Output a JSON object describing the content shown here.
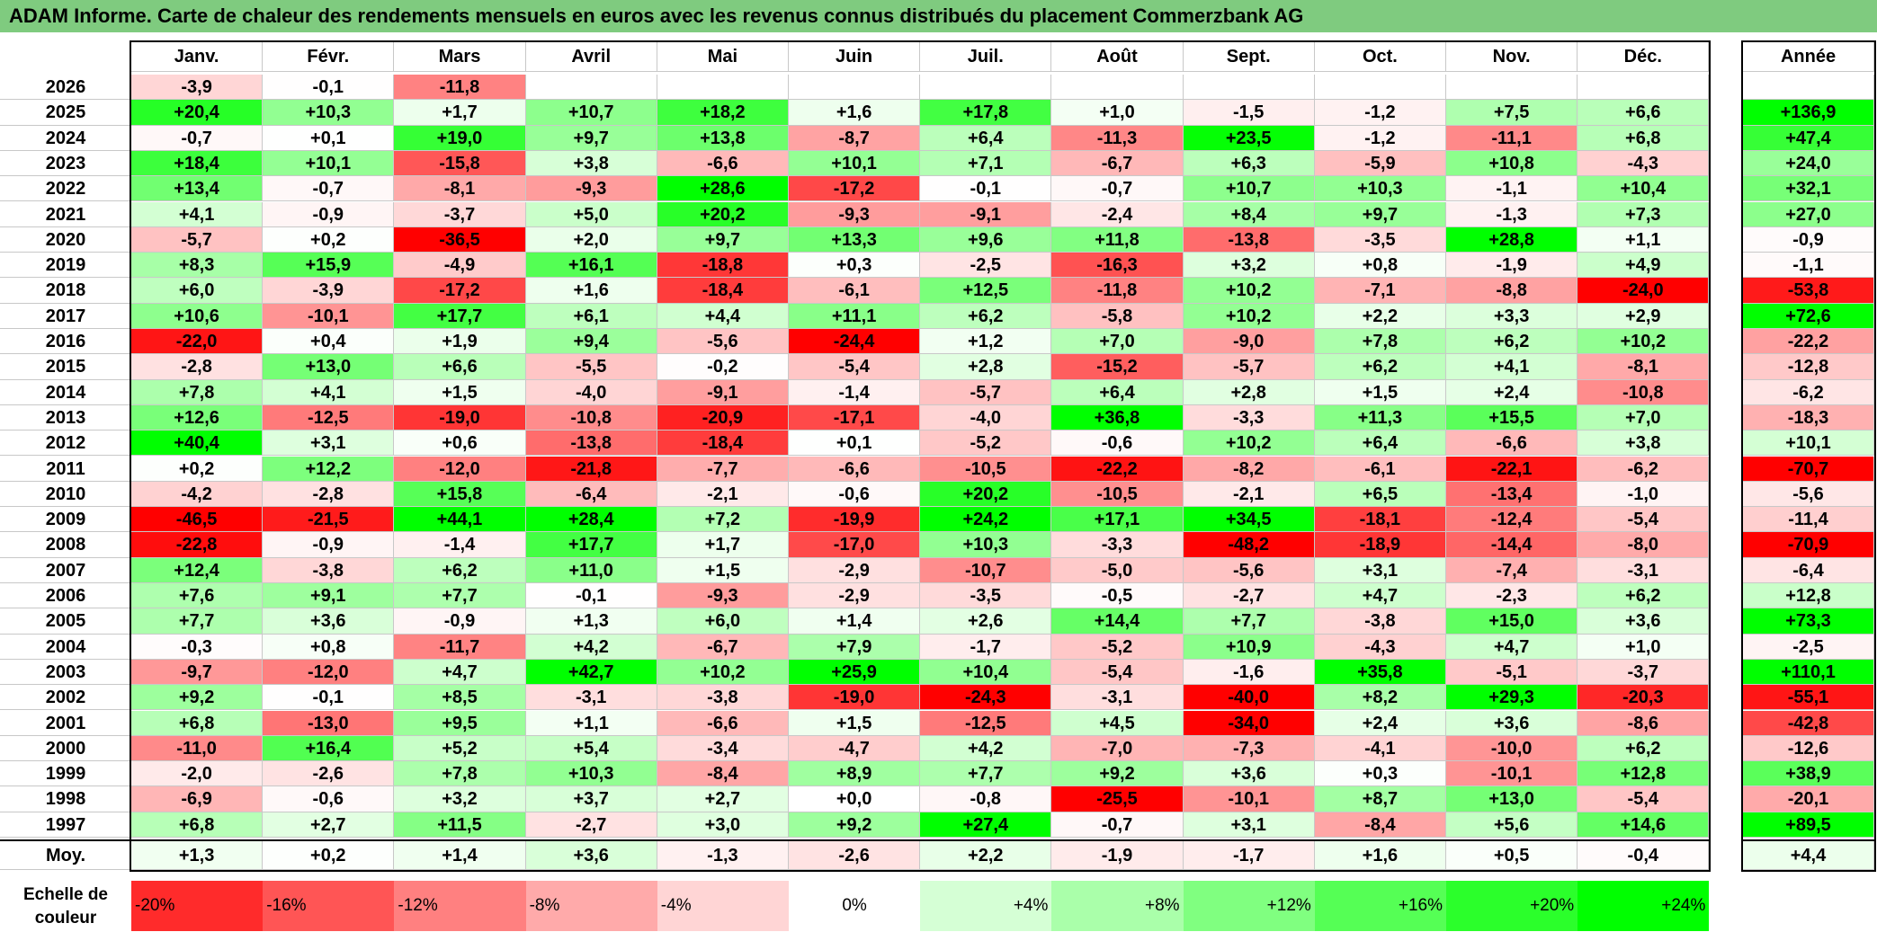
{
  "title": "ADAM Informe. Carte de chaleur des rendements mensuels en euros avec les revenus connus distribués du placement Commerzbank AG",
  "months": [
    "Janv.",
    "Févr.",
    "Mars",
    "Avril",
    "Mai",
    "Juin",
    "Juil.",
    "Août",
    "Sept.",
    "Oct.",
    "Nov.",
    "Déc."
  ],
  "year_header": "Année",
  "avg_label": "Moy.",
  "legend_title_line1": "Echelle de",
  "legend_title_line2": "couleur",
  "colors": {
    "negative": "#ff0000",
    "neutral": "#ffffff",
    "positive": "#00ff00",
    "title_bar": "#7fcb7f"
  },
  "chart_data": {
    "type": "heatmap",
    "title": "ADAM Informe. Carte de chaleur des rendements mensuels en euros avec les revenus connus distribués du placement Commerzbank AG",
    "columns": [
      "Janv.",
      "Févr.",
      "Mars",
      "Avril",
      "Mai",
      "Juin",
      "Juil.",
      "Août",
      "Sept.",
      "Oct.",
      "Nov.",
      "Déc."
    ],
    "rows": [
      {
        "year": "2026",
        "values": [
          -3.9,
          -0.1,
          -11.8,
          null,
          null,
          null,
          null,
          null,
          null,
          null,
          null,
          null
        ],
        "annual": null
      },
      {
        "year": "2025",
        "values": [
          20.4,
          10.3,
          1.7,
          10.7,
          18.2,
          1.6,
          17.8,
          1.0,
          -1.5,
          -1.2,
          7.5,
          6.6
        ],
        "annual": 136.9
      },
      {
        "year": "2024",
        "values": [
          -0.7,
          0.1,
          19.0,
          9.7,
          13.8,
          -8.7,
          6.4,
          -11.3,
          23.5,
          -1.2,
          -11.1,
          6.8
        ],
        "annual": 47.4
      },
      {
        "year": "2023",
        "values": [
          18.4,
          10.1,
          -15.8,
          3.8,
          -6.6,
          10.1,
          7.1,
          -6.7,
          6.3,
          -5.9,
          10.8,
          -4.3
        ],
        "annual": 24.0
      },
      {
        "year": "2022",
        "values": [
          13.4,
          -0.7,
          -8.1,
          -9.3,
          28.6,
          -17.2,
          -0.1,
          -0.7,
          10.7,
          10.3,
          -1.1,
          10.4
        ],
        "annual": 32.1
      },
      {
        "year": "2021",
        "values": [
          4.1,
          -0.9,
          -3.7,
          5.0,
          20.2,
          -9.3,
          -9.1,
          -2.4,
          8.4,
          9.7,
          -1.3,
          7.3
        ],
        "annual": 27.0
      },
      {
        "year": "2020",
        "values": [
          -5.7,
          0.2,
          -36.5,
          2.0,
          9.7,
          13.3,
          9.6,
          11.8,
          -13.8,
          -3.5,
          28.8,
          1.1
        ],
        "annual": -0.9
      },
      {
        "year": "2019",
        "values": [
          8.3,
          15.9,
          -4.9,
          16.1,
          -18.8,
          0.3,
          -2.5,
          -16.3,
          3.2,
          0.8,
          -1.9,
          4.9
        ],
        "annual": -1.1
      },
      {
        "year": "2018",
        "values": [
          6.0,
          -3.9,
          -17.2,
          1.6,
          -18.4,
          -6.1,
          12.5,
          -11.8,
          10.2,
          -7.1,
          -8.8,
          -24.0
        ],
        "annual": -53.8
      },
      {
        "year": "2017",
        "values": [
          10.6,
          -10.1,
          17.7,
          6.1,
          4.4,
          11.1,
          6.2,
          -5.8,
          10.2,
          2.2,
          3.3,
          2.9
        ],
        "annual": 72.6
      },
      {
        "year": "2016",
        "values": [
          -22.0,
          0.4,
          1.9,
          9.4,
          -5.6,
          -24.4,
          1.2,
          7.0,
          -9.0,
          7.8,
          6.2,
          10.2
        ],
        "annual": -22.2
      },
      {
        "year": "2015",
        "values": [
          -2.8,
          13.0,
          6.6,
          -5.5,
          -0.2,
          -5.4,
          2.8,
          -15.2,
          -5.7,
          6.2,
          4.1,
          -8.1
        ],
        "annual": -12.8
      },
      {
        "year": "2014",
        "values": [
          7.8,
          4.1,
          1.5,
          -4.0,
          -9.1,
          -1.4,
          -5.7,
          6.4,
          2.8,
          1.5,
          2.4,
          -10.8
        ],
        "annual": -6.2
      },
      {
        "year": "2013",
        "values": [
          12.6,
          -12.5,
          -19.0,
          -10.8,
          -20.9,
          -17.1,
          -4.0,
          36.8,
          -3.3,
          11.3,
          15.5,
          7.0
        ],
        "annual": -18.3
      },
      {
        "year": "2012",
        "values": [
          40.4,
          3.1,
          0.6,
          -13.8,
          -18.4,
          0.1,
          -5.2,
          -0.6,
          10.2,
          6.4,
          -6.6,
          3.8
        ],
        "annual": 10.1
      },
      {
        "year": "2011",
        "values": [
          0.2,
          12.2,
          -12.0,
          -21.8,
          -7.7,
          -6.6,
          -10.5,
          -22.2,
          -8.2,
          -6.1,
          -22.1,
          -6.2
        ],
        "annual": -70.7
      },
      {
        "year": "2010",
        "values": [
          -4.2,
          -2.8,
          15.8,
          -6.4,
          -2.1,
          -0.6,
          20.2,
          -10.5,
          -2.1,
          6.5,
          -13.4,
          -1.0
        ],
        "annual": -5.6
      },
      {
        "year": "2009",
        "values": [
          -46.5,
          -21.5,
          44.1,
          28.4,
          7.2,
          -19.9,
          24.2,
          17.1,
          34.5,
          -18.1,
          -12.4,
          -5.4
        ],
        "annual": -11.4
      },
      {
        "year": "2008",
        "values": [
          -22.8,
          -0.9,
          -1.4,
          17.7,
          1.7,
          -17.0,
          10.3,
          -3.3,
          -48.2,
          -18.9,
          -14.4,
          -8.0
        ],
        "annual": -70.9
      },
      {
        "year": "2007",
        "values": [
          12.4,
          -3.8,
          6.2,
          11.0,
          1.5,
          -2.9,
          -10.7,
          -5.0,
          -5.6,
          3.1,
          -7.4,
          -3.1
        ],
        "annual": -6.4
      },
      {
        "year": "2006",
        "values": [
          7.6,
          9.1,
          7.7,
          -0.1,
          -9.3,
          -2.9,
          -3.5,
          -0.5,
          -2.7,
          4.7,
          -2.3,
          6.2
        ],
        "annual": 12.8
      },
      {
        "year": "2005",
        "values": [
          7.7,
          3.6,
          -0.9,
          1.3,
          6.0,
          1.4,
          2.6,
          14.4,
          7.7,
          -3.8,
          15.0,
          3.6
        ],
        "annual": 73.3
      },
      {
        "year": "2004",
        "values": [
          -0.3,
          0.8,
          -11.7,
          4.2,
          -6.7,
          7.9,
          -1.7,
          -5.2,
          10.9,
          -4.3,
          4.7,
          1.0
        ],
        "annual": -2.5
      },
      {
        "year": "2003",
        "values": [
          -9.7,
          -12.0,
          4.7,
          42.7,
          10.2,
          25.9,
          10.4,
          -5.4,
          -1.6,
          35.8,
          -5.1,
          -3.7
        ],
        "annual": 110.1
      },
      {
        "year": "2002",
        "values": [
          9.2,
          -0.1,
          8.5,
          -3.1,
          -3.8,
          -19.0,
          -24.3,
          -3.1,
          -40.0,
          8.2,
          29.3,
          -20.3
        ],
        "annual": -55.1
      },
      {
        "year": "2001",
        "values": [
          6.8,
          -13.0,
          9.5,
          1.1,
          -6.6,
          1.5,
          -12.5,
          4.5,
          -34.0,
          2.4,
          3.6,
          -8.6
        ],
        "annual": -42.8
      },
      {
        "year": "2000",
        "values": [
          -11.0,
          16.4,
          5.2,
          5.4,
          -3.4,
          -4.7,
          4.2,
          -7.0,
          -7.3,
          -4.1,
          -10.0,
          6.2
        ],
        "annual": -12.6
      },
      {
        "year": "1999",
        "values": [
          -2.0,
          -2.6,
          7.8,
          10.3,
          -8.4,
          8.9,
          7.7,
          9.2,
          3.6,
          0.3,
          -10.1,
          12.8
        ],
        "annual": 38.9
      },
      {
        "year": "1998",
        "values": [
          -6.9,
          -0.6,
          3.2,
          3.7,
          2.7,
          0.0,
          -0.8,
          -25.5,
          -10.1,
          8.7,
          13.0,
          -5.4
        ],
        "annual": -20.1
      },
      {
        "year": "1997",
        "values": [
          6.8,
          2.7,
          11.5,
          -2.7,
          3.0,
          9.2,
          27.4,
          -0.7,
          3.1,
          -8.4,
          5.6,
          14.6
        ],
        "annual": 89.5
      }
    ],
    "averages": [
      1.3,
      0.2,
      1.4,
      3.6,
      -1.3,
      -2.6,
      2.2,
      -1.9,
      -1.7,
      1.6,
      0.5,
      -0.4
    ],
    "average_annual": 4.4,
    "legend": [
      "-20%",
      "-16%",
      "-12%",
      "-8%",
      "-4%",
      "0%",
      "+4%",
      "+8%",
      "+12%",
      "+16%",
      "+20%",
      "+24%"
    ],
    "legend_values": [
      -20,
      -16,
      -12,
      -8,
      -4,
      0,
      4,
      8,
      12,
      16,
      20,
      24
    ]
  }
}
